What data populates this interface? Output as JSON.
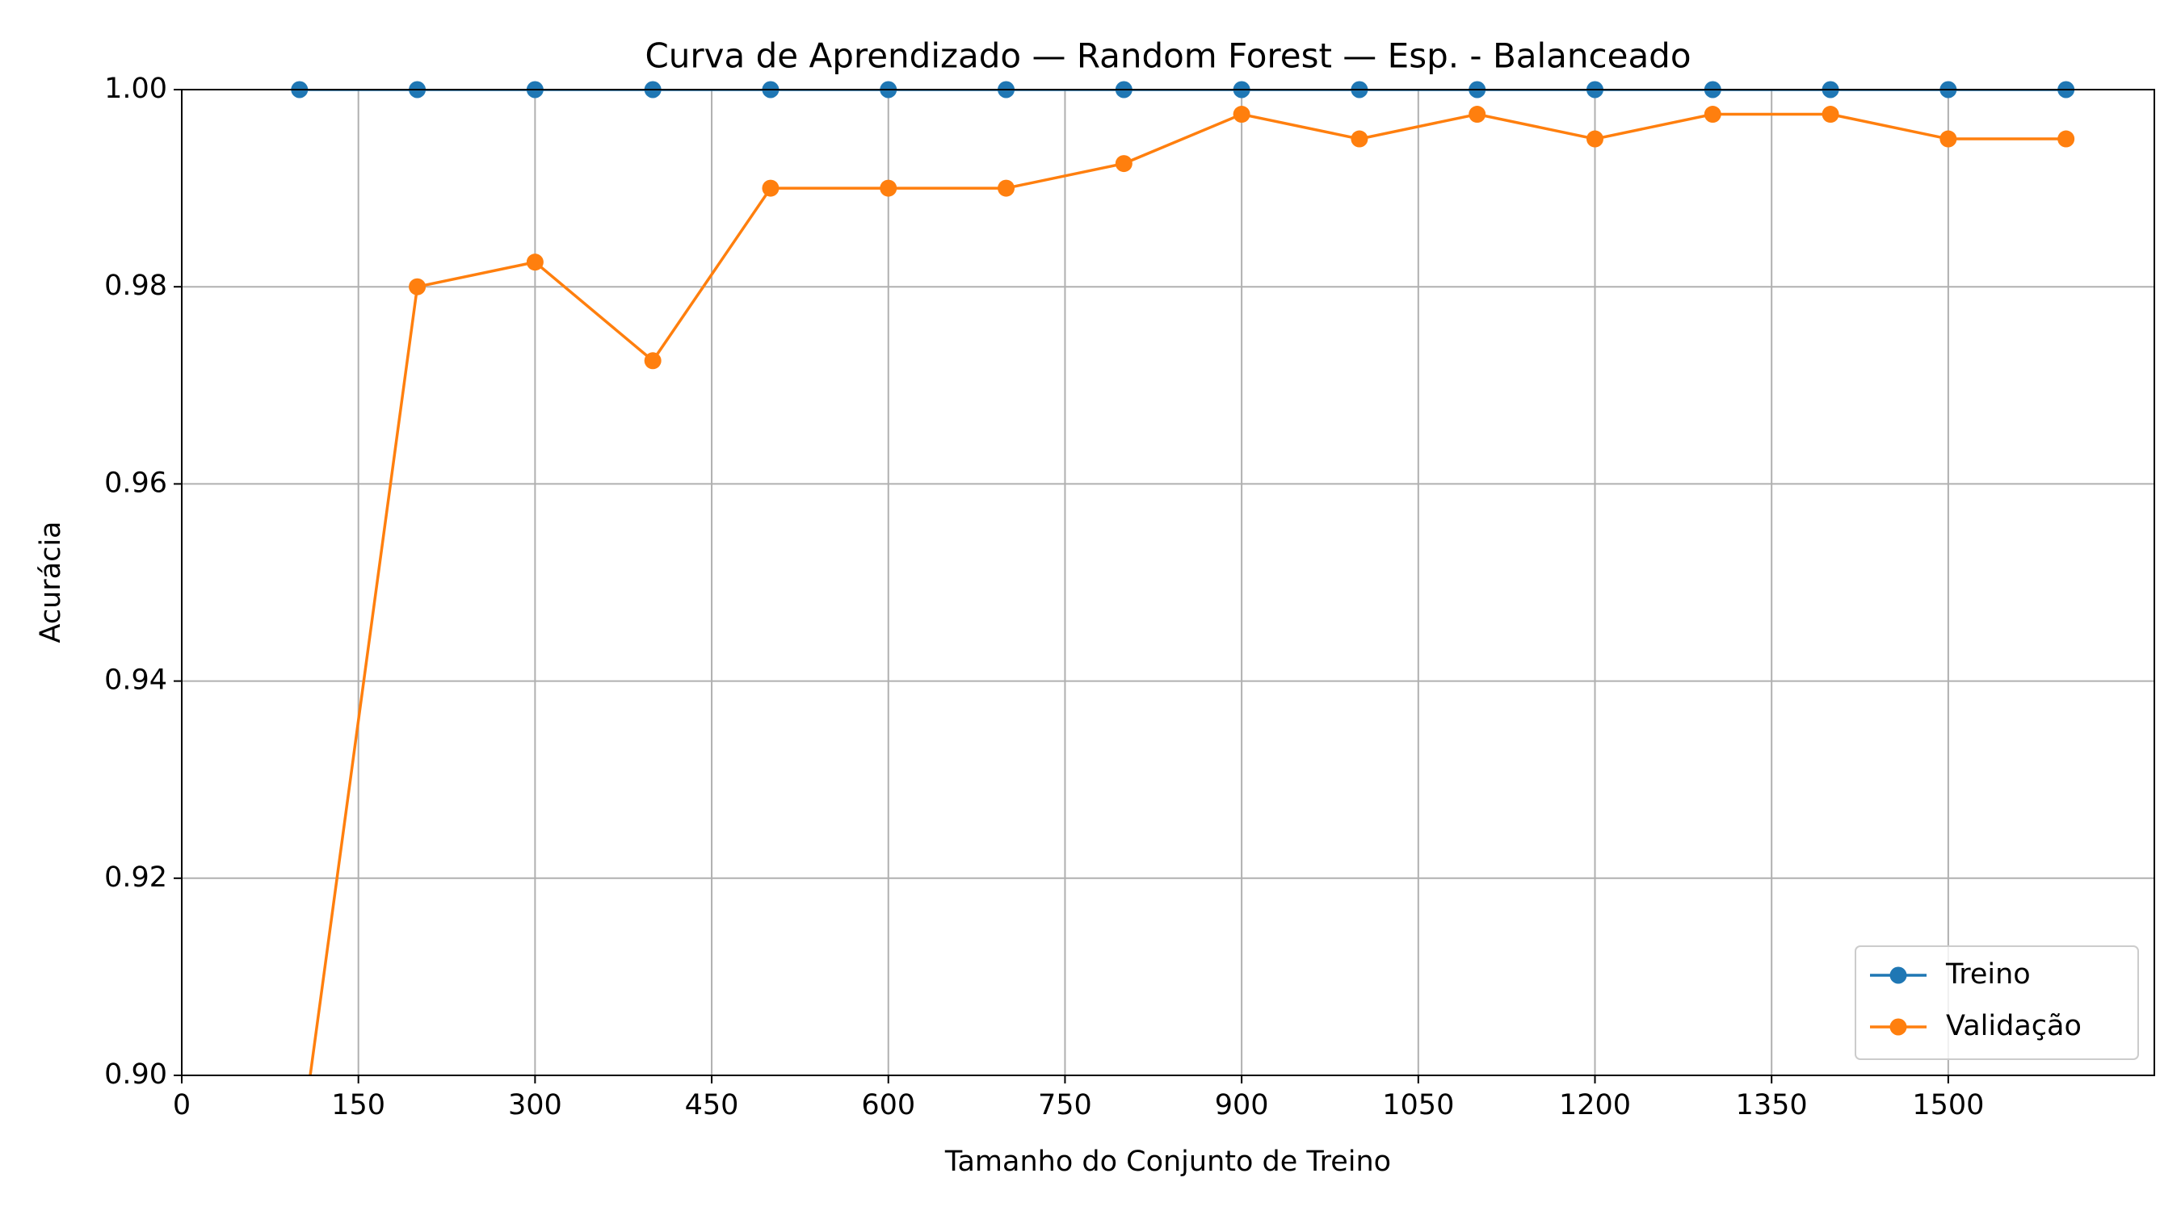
{
  "chart_data": {
    "type": "line",
    "title": "Curva de Aprendizado — Random Forest — Esp. - Balanceado",
    "x_label": "Tamanho do Conjunto de Treino",
    "y_label": "Acurácia",
    "x": [
      100,
      200,
      300,
      400,
      500,
      600,
      700,
      800,
      900,
      1000,
      1100,
      1200,
      1300,
      1400,
      1500,
      1600
    ],
    "series": [
      {
        "name": "Treino",
        "color": "#1f77b4",
        "values": [
          1.0,
          1.0,
          1.0,
          1.0,
          1.0,
          1.0,
          1.0,
          1.0,
          1.0,
          1.0,
          1.0,
          1.0,
          1.0,
          1.0,
          1.0,
          1.0
        ]
      },
      {
        "name": "Validação",
        "color": "#ff7f0e",
        "values": [
          0.892,
          0.98,
          0.9825,
          0.9725,
          0.99,
          0.99,
          0.99,
          0.9925,
          0.9975,
          0.995,
          0.9975,
          0.995,
          0.9975,
          0.9975,
          0.995,
          0.995
        ]
      }
    ],
    "xlim": [
      0,
      1675
    ],
    "xticks": [
      0,
      150,
      300,
      450,
      600,
      750,
      900,
      1050,
      1200,
      1350,
      1500
    ],
    "ylim": [
      0.9,
      1.0
    ],
    "yticks": [
      {
        "value": 0.9,
        "label": "0.90"
      },
      0.92,
      0.94,
      0.96,
      0.98,
      {
        "value": 1.0,
        "label": "1.00"
      }
    ],
    "grid": true,
    "legend": "lower right"
  }
}
